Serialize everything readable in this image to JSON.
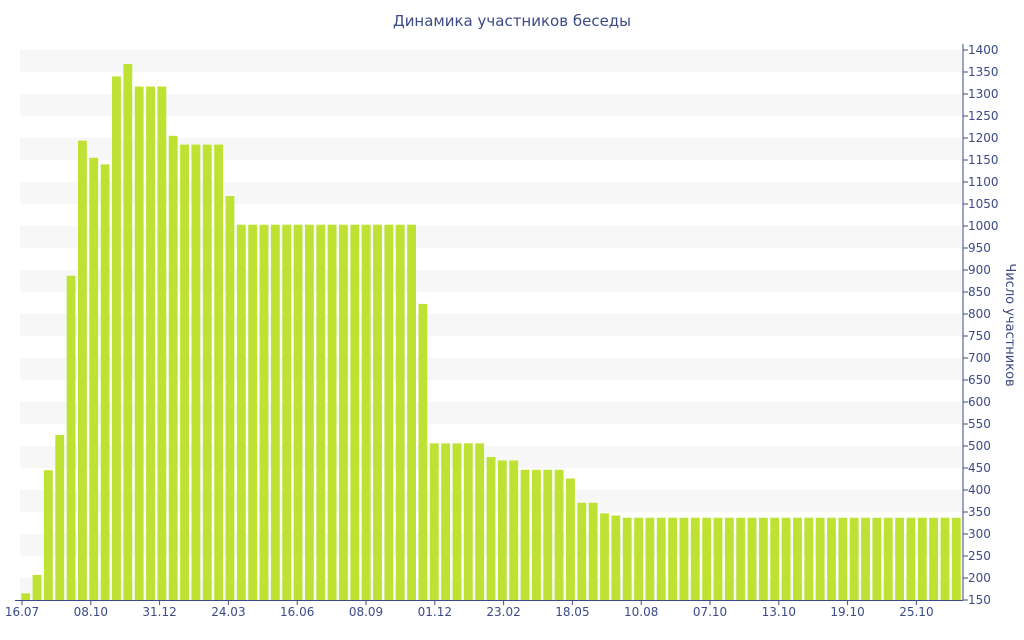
{
  "chart_data": {
    "type": "bar",
    "title": "Динамика участников беседы",
    "xlabel": "",
    "ylabel": "Число участников",
    "ylim": [
      150,
      1400
    ],
    "y_ticks": [
      150,
      200,
      250,
      300,
      350,
      400,
      450,
      500,
      550,
      600,
      650,
      700,
      750,
      800,
      850,
      900,
      950,
      1000,
      1050,
      1100,
      1150,
      1200,
      1250,
      1300,
      1350,
      1400
    ],
    "y_axis_position": "right",
    "grid": "horizontal alternating bands",
    "x_tick_labels": [
      "16.07",
      "08.10",
      "31.12",
      "24.03",
      "16.06",
      "08.09",
      "01.12",
      "23.02",
      "18.05",
      "10.08",
      "07.10",
      "13.10",
      "19.10",
      "25.10"
    ],
    "bar_color": "#bde234",
    "values": [
      165,
      207,
      445,
      525,
      887,
      1194,
      1155,
      1140,
      1340,
      1368,
      1317,
      1317,
      1317,
      1205,
      1185,
      1185,
      1185,
      1185,
      1068,
      1003,
      1003,
      1003,
      1003,
      1003,
      1003,
      1003,
      1003,
      1003,
      1003,
      1003,
      1003,
      1003,
      1003,
      1003,
      1003,
      823,
      506,
      506,
      506,
      506,
      506,
      475,
      467,
      467,
      446,
      446,
      446,
      446,
      426,
      371,
      371,
      347,
      342,
      337,
      337,
      337,
      337,
      337,
      337,
      337,
      337,
      337,
      337,
      337,
      337,
      337,
      337,
      337,
      337,
      337,
      337,
      337,
      337,
      337,
      337,
      337,
      337,
      337,
      337,
      337,
      337,
      337,
      337
    ]
  }
}
